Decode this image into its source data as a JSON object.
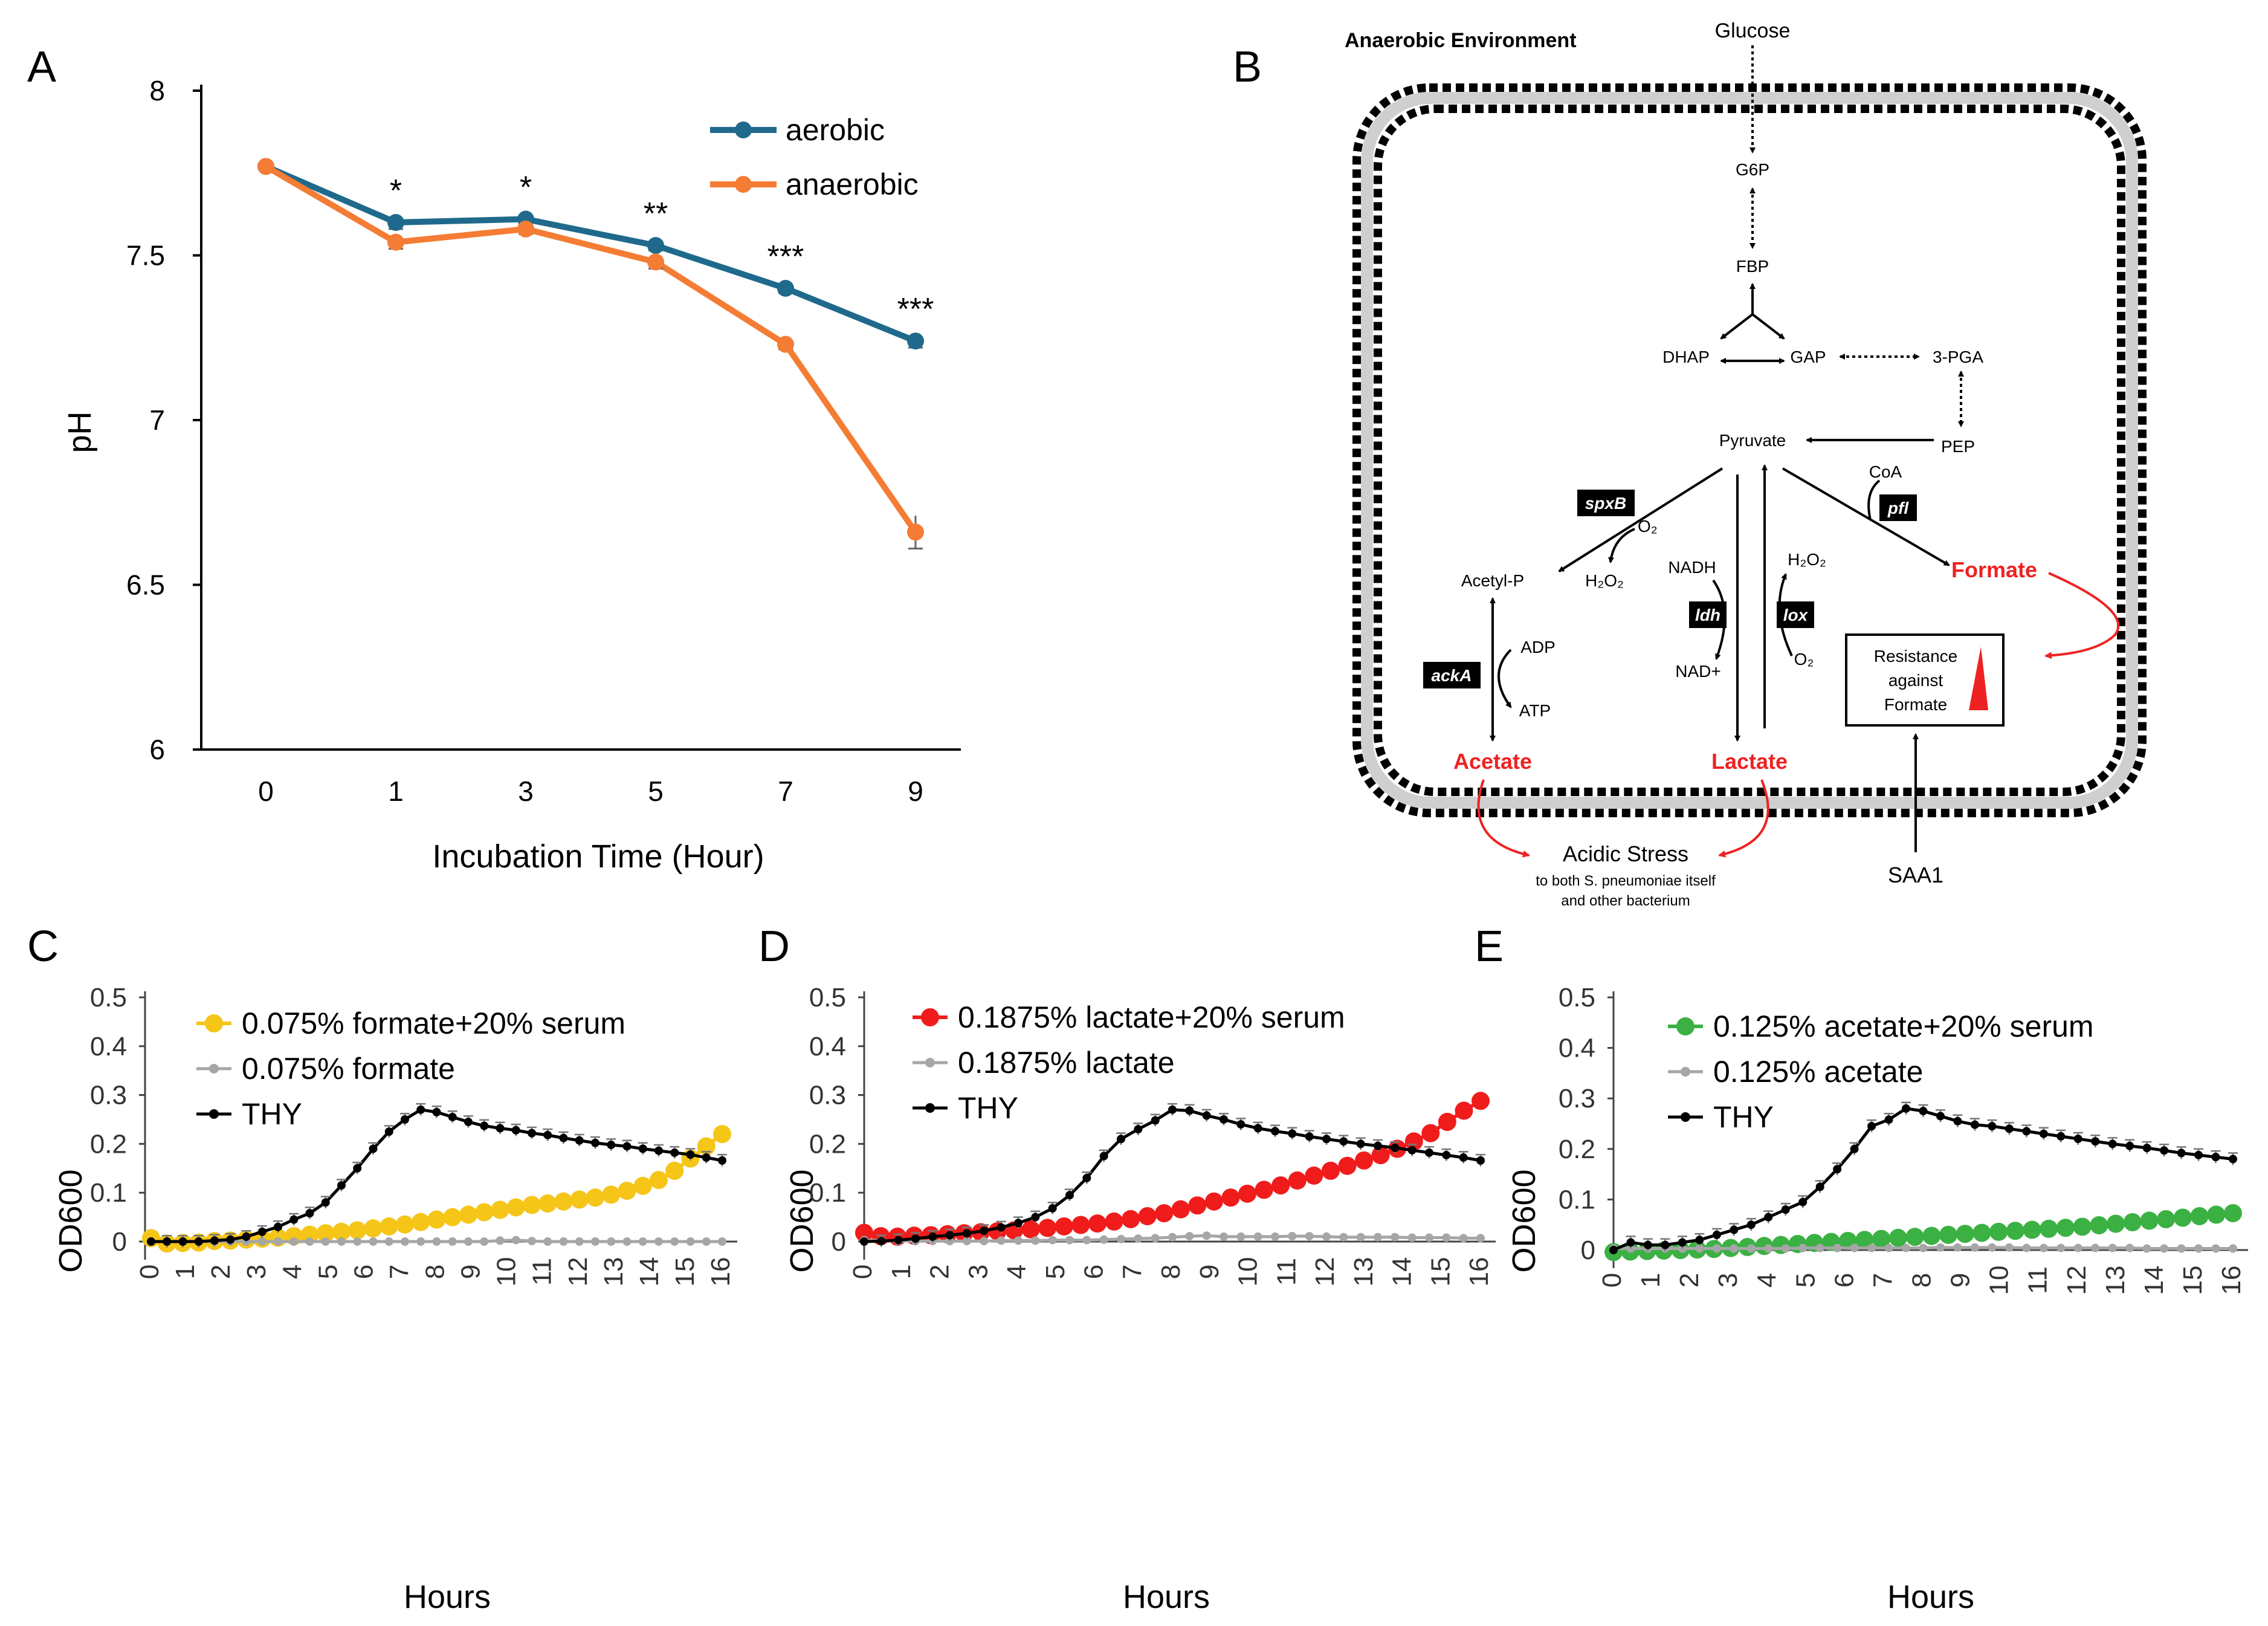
{
  "panels": {
    "A": "A",
    "B": "B",
    "C": "C",
    "D": "D",
    "E": "E"
  },
  "chart_data": [
    {
      "id": "A",
      "type": "line",
      "title": "",
      "xlabel": "Incubation Time (Hour)",
      "ylabel": "pH",
      "categories": [
        "0",
        "1",
        "3",
        "5",
        "7",
        "9"
      ],
      "ylim": [
        6,
        8
      ],
      "yticks": [
        "6",
        "6.5",
        "7",
        "7.5",
        "8"
      ],
      "series": [
        {
          "name": "aerobic",
          "color": "#1f6a8c",
          "values": [
            7.77,
            7.6,
            7.61,
            7.53,
            7.4,
            7.24
          ],
          "err": [
            0.01,
            0.02,
            0.015,
            0.015,
            0.015,
            0.02
          ]
        },
        {
          "name": "anaerobic",
          "color": "#f47c34",
          "values": [
            7.77,
            7.54,
            7.58,
            7.48,
            7.23,
            6.66
          ],
          "err": [
            0.01,
            0.02,
            0.015,
            0.02,
            0.015,
            0.05
          ]
        }
      ],
      "annotations": [
        "*",
        "*",
        "**",
        "***",
        "***"
      ]
    },
    {
      "id": "C",
      "type": "line",
      "xlabel": "Hours",
      "ylabel": "OD600",
      "ylim": [
        0,
        0.5
      ],
      "yticks": [
        "0",
        "0.1",
        "0.2",
        "0.3",
        "0.4",
        "0.5"
      ],
      "xticks": [
        "0",
        "1",
        "2",
        "3",
        "4",
        "5",
        "6",
        "7",
        "8",
        "9",
        "10",
        "11",
        "12",
        "13",
        "14",
        "15",
        "16"
      ],
      "series": [
        {
          "name": "0.075% formate+20% serum",
          "color": "#f5c518",
          "marker": "large",
          "values": [
            0.007,
            -0.004,
            -0.003,
            -0.002,
            0.001,
            0.002,
            0.004,
            0.006,
            0.008,
            0.011,
            0.014,
            0.017,
            0.02,
            0.023,
            0.027,
            0.031,
            0.035,
            0.04,
            0.045,
            0.05,
            0.055,
            0.06,
            0.065,
            0.07,
            0.075,
            0.078,
            0.082,
            0.086,
            0.09,
            0.096,
            0.104,
            0.114,
            0.126,
            0.145,
            0.17,
            0.195,
            0.22
          ]
        },
        {
          "name": "0.075% formate",
          "color": "#a6a6a6",
          "marker": "small",
          "values": [
            0,
            0,
            0,
            0,
            0,
            0,
            0,
            0,
            0,
            0,
            0,
            0,
            0,
            0,
            0,
            0,
            0,
            0,
            0,
            0,
            0,
            0,
            0.002,
            0.003,
            0.001,
            0,
            0,
            0,
            0,
            0,
            0,
            0,
            0,
            0,
            0,
            0,
            0
          ]
        },
        {
          "name": "THY",
          "color": "#000000",
          "marker": "small",
          "values": [
            0,
            0,
            0,
            0,
            0.002,
            0.004,
            0.01,
            0.02,
            0.03,
            0.045,
            0.058,
            0.08,
            0.115,
            0.15,
            0.19,
            0.225,
            0.25,
            0.27,
            0.265,
            0.255,
            0.245,
            0.237,
            0.232,
            0.228,
            0.222,
            0.218,
            0.212,
            0.207,
            0.202,
            0.198,
            0.195,
            0.19,
            0.186,
            0.182,
            0.178,
            0.172,
            0.166
          ]
        }
      ]
    },
    {
      "id": "D",
      "type": "line",
      "xlabel": "Hours",
      "ylabel": "OD600",
      "ylim": [
        0,
        0.5
      ],
      "yticks": [
        "0",
        "0.1",
        "0.2",
        "0.3",
        "0.4",
        "0.5"
      ],
      "xticks": [
        "0",
        "1",
        "2",
        "3",
        "4",
        "5",
        "6",
        "7",
        "8",
        "9",
        "10",
        "11",
        "12",
        "13",
        "14",
        "15",
        "16"
      ],
      "series": [
        {
          "name": "0.1875% lactate+20% serum",
          "color": "#f01c1c",
          "marker": "large",
          "values": [
            0.018,
            0.011,
            0.01,
            0.012,
            0.013,
            0.015,
            0.017,
            0.019,
            0.021,
            0.023,
            0.025,
            0.028,
            0.031,
            0.034,
            0.037,
            0.041,
            0.046,
            0.052,
            0.058,
            0.066,
            0.074,
            0.082,
            0.09,
            0.098,
            0.106,
            0.115,
            0.125,
            0.135,
            0.145,
            0.155,
            0.166,
            0.177,
            0.19,
            0.205,
            0.222,
            0.245,
            0.268,
            0.288
          ]
        },
        {
          "name": "0.1875% lactate",
          "color": "#a6a6a6",
          "marker": "small",
          "values": [
            0.003,
            0.002,
            0.001,
            0.001,
            0.001,
            0.001,
            0.001,
            0.001,
            0.002,
            0.002,
            0.002,
            0.003,
            0.003,
            0.003,
            0.004,
            0.005,
            0.006,
            0.007,
            0.009,
            0.011,
            0.012,
            0.01,
            0.01,
            0.01,
            0.01,
            0.011,
            0.011,
            0.01,
            0.009,
            0.009,
            0.009,
            0.009,
            0.008,
            0.008,
            0.008,
            0.007,
            0.007
          ]
        },
        {
          "name": "THY",
          "color": "#000000",
          "marker": "small",
          "values": [
            0,
            0.001,
            0.003,
            0.006,
            0.01,
            0.013,
            0.017,
            0.022,
            0.029,
            0.038,
            0.05,
            0.068,
            0.095,
            0.13,
            0.175,
            0.21,
            0.23,
            0.248,
            0.27,
            0.268,
            0.258,
            0.25,
            0.24,
            0.232,
            0.226,
            0.221,
            0.215,
            0.21,
            0.205,
            0.2,
            0.196,
            0.192,
            0.187,
            0.182,
            0.177,
            0.172,
            0.166
          ]
        }
      ]
    },
    {
      "id": "E",
      "type": "line",
      "xlabel": "Hours",
      "ylabel": "OD600",
      "ylim": [
        0,
        0.5
      ],
      "yticks": [
        "0",
        "0.1",
        "0.2",
        "0.3",
        "0.4",
        "0.5"
      ],
      "xticks": [
        "0",
        "1",
        "2",
        "3",
        "4",
        "5",
        "6",
        "7",
        "8",
        "9",
        "10",
        "11",
        "12",
        "13",
        "14",
        "15",
        "16"
      ],
      "series": [
        {
          "name": "0.125% acetate+20% serum",
          "color": "#3bb143",
          "marker": "large",
          "values": [
            -0.004,
            -0.003,
            -0.002,
            -0.001,
            0,
            0.001,
            0.002,
            0.004,
            0.006,
            0.008,
            0.01,
            0.012,
            0.014,
            0.016,
            0.018,
            0.02,
            0.022,
            0.024,
            0.026,
            0.028,
            0.03,
            0.032,
            0.034,
            0.036,
            0.038,
            0.04,
            0.042,
            0.044,
            0.046,
            0.049,
            0.052,
            0.055,
            0.058,
            0.061,
            0.064,
            0.067,
            0.07,
            0.073
          ]
        },
        {
          "name": "0.125% acetate",
          "color": "#a6a6a6",
          "marker": "small",
          "values": [
            0.003,
            0.003,
            0.003,
            0.003,
            0.003,
            0.003,
            0.003,
            0.003,
            0.003,
            0.003,
            0.003,
            0.004,
            0.004,
            0.004,
            0.004,
            0.004,
            0.004,
            0.004,
            0.004,
            0.005,
            0.005,
            0.005,
            0.005,
            0.005,
            0.004,
            0.004,
            0.004,
            0.004,
            0.004,
            0.004,
            0.004,
            0.003,
            0.003,
            0.003,
            0.003,
            0.003,
            0.003
          ]
        },
        {
          "name": "THY",
          "color": "#000000",
          "marker": "small",
          "values": [
            0,
            0.015,
            0.01,
            0.01,
            0.015,
            0.02,
            0.03,
            0.04,
            0.05,
            0.065,
            0.08,
            0.095,
            0.125,
            0.16,
            0.2,
            0.245,
            0.258,
            0.28,
            0.275,
            0.265,
            0.255,
            0.248,
            0.245,
            0.24,
            0.235,
            0.23,
            0.225,
            0.22,
            0.215,
            0.21,
            0.206,
            0.202,
            0.197,
            0.192,
            0.188,
            0.184,
            0.18
          ]
        }
      ]
    }
  ],
  "diagram": {
    "title": "Anaerobic Environment",
    "glucose": "Glucose",
    "g6p": "G6P",
    "fbp": "FBP",
    "dhap": "DHAP",
    "gap": "GAP",
    "pga": "3-PGA",
    "pyruvate": "Pyruvate",
    "pep": "PEP",
    "coa": "CoA",
    "pfl": "pfl",
    "spxb": "spxB",
    "o2_a": "O₂",
    "h2o2_a": "H₂O₂",
    "acetylp": "Acetyl-P",
    "nadh": "NADH",
    "nad": "NAD+",
    "h2o2_b": "H₂O₂",
    "o2_b": "O₂",
    "ldh": "ldh",
    "lox": "lox",
    "formate": "Formate",
    "ackA": "ackA",
    "adp": "ADP",
    "atp": "ATP",
    "acetate": "Acetate",
    "lactate": "Lactate",
    "resist1": "Resistance",
    "resist2": "against",
    "resist3": "Formate",
    "stress": "Acidic Stress",
    "stress_sub1": "to both S. pneumoniae itself",
    "stress_sub2": "and other bacterium",
    "saa1": "SAA1"
  }
}
